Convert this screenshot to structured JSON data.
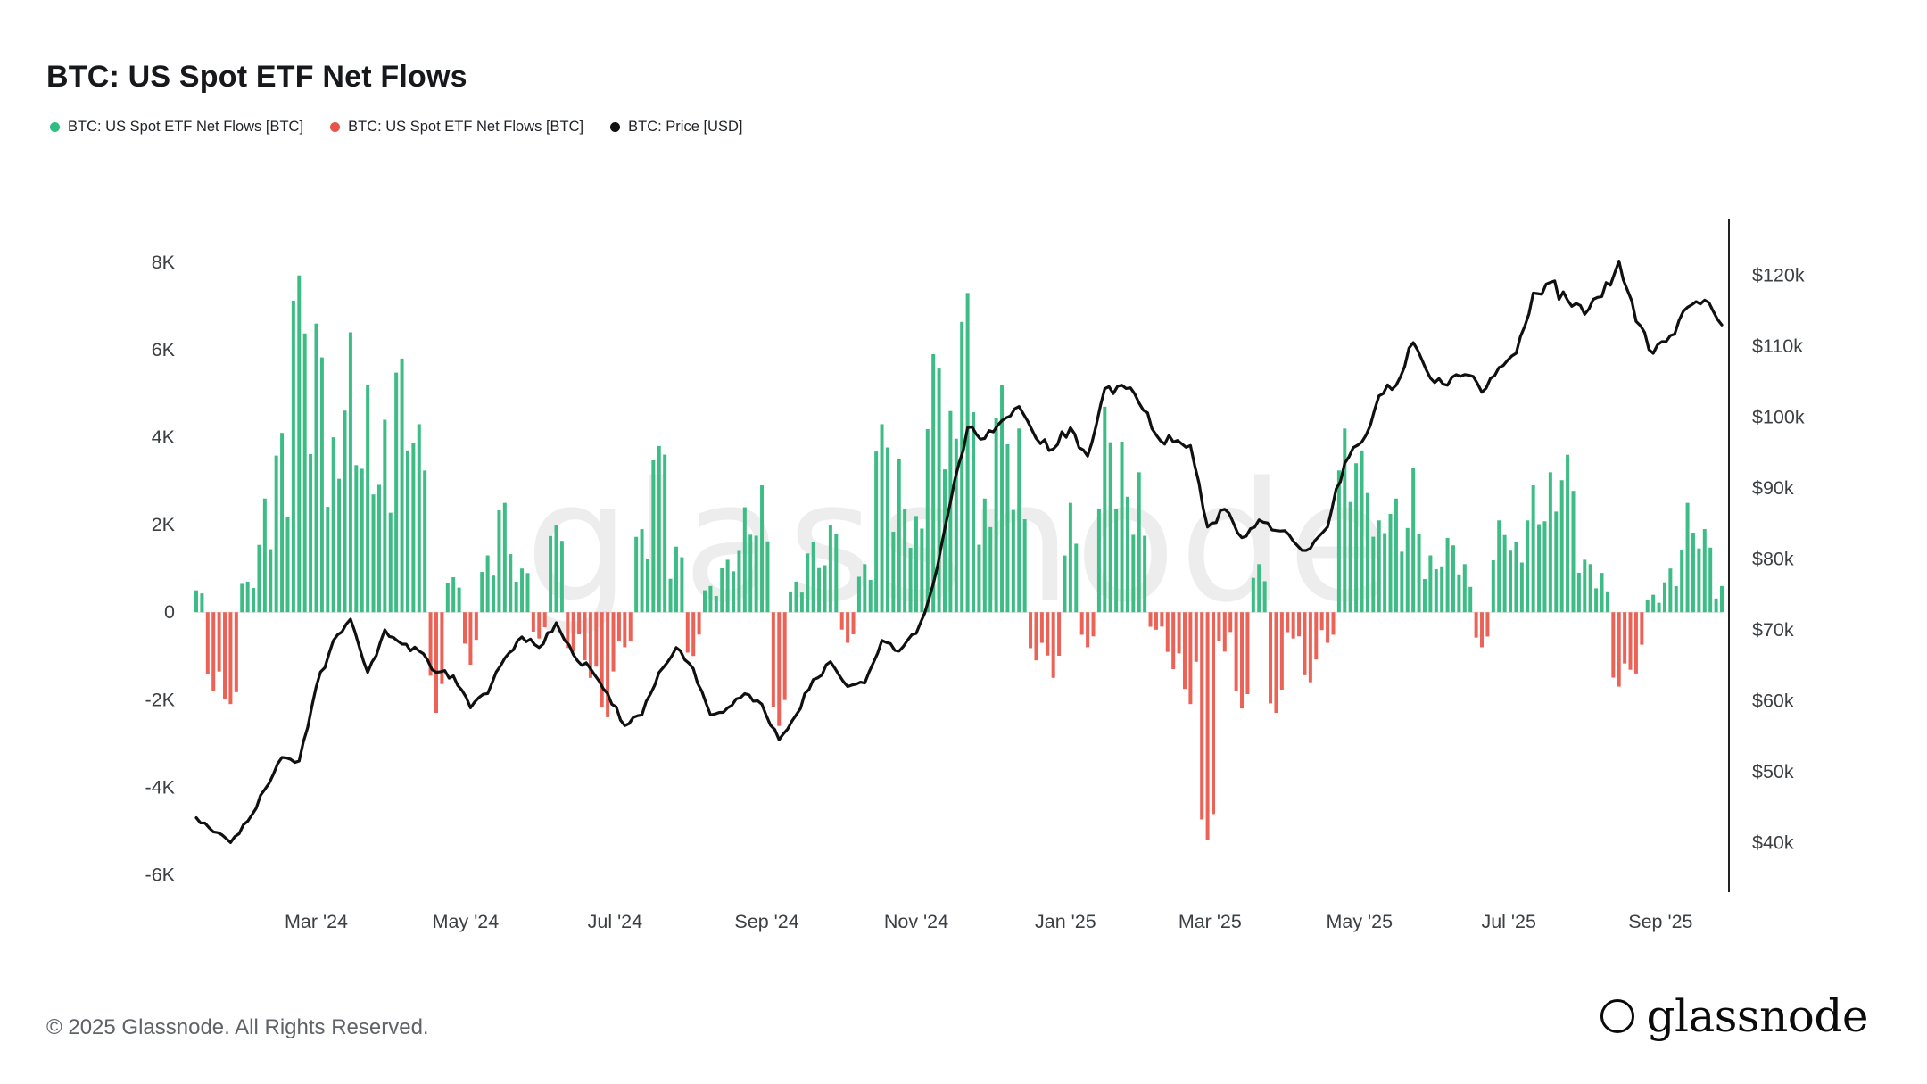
{
  "page": {
    "title": "BTC: US Spot ETF Net Flows",
    "footer_copyright": "© 2025 Glassnode. All Rights Reserved.",
    "brand": "glassnode",
    "watermark": "glassnode"
  },
  "legend": {
    "items": [
      {
        "label": "BTC: US Spot ETF Net Flows [BTC]",
        "color": "#2fbd82"
      },
      {
        "label": "BTC: US Spot ETF Net Flows [BTC]",
        "color": "#e8544a"
      },
      {
        "label": "BTC: Price [USD]",
        "color": "#111111"
      }
    ]
  },
  "chart_data": {
    "type": "bar+line",
    "title": "BTC: US Spot ETF Net Flows",
    "granularity": "weekly (approximate values read from chart)",
    "legend_position": "top-left",
    "grid": false,
    "watermark": "glassnode",
    "series": [
      {
        "name": "BTC: US Spot ETF Net Flows [BTC]",
        "type": "bar",
        "role": "inflows",
        "color": "#3dbd85"
      },
      {
        "name": "BTC: US Spot ETF Net Flows [BTC]",
        "type": "bar",
        "role": "outflows",
        "color": "#ec6257"
      },
      {
        "name": "BTC: Price [USD]",
        "type": "line",
        "color": "#101010"
      }
    ],
    "x_start": "2024-01-12",
    "x_step_days": 7,
    "flows_btc": [
      500,
      -1800,
      -2100,
      700,
      2600,
      4100,
      7700,
      6600,
      4000,
      6400,
      5200,
      4400,
      5800,
      4300,
      -2300,
      800,
      -1200,
      1300,
      2500,
      1000,
      -600,
      2000,
      -900,
      -1500,
      -2400,
      -800,
      1900,
      3800,
      1500,
      -1000,
      600,
      1200,
      2400,
      2900,
      -2600,
      700,
      1600,
      2000,
      -700,
      1100,
      4300,
      3500,
      2200,
      5900,
      4600,
      7300,
      2600,
      5200,
      4200,
      -1100,
      -1500,
      2500,
      -800,
      4700,
      3900,
      3200,
      -400,
      -1300,
      -2100,
      -5200,
      -900,
      -2200,
      1100,
      -2300,
      -600,
      -1600,
      -700,
      4200,
      3700,
      2100,
      2600,
      3300,
      1300,
      1700,
      1100,
      -800,
      2100,
      1600,
      2900,
      3200,
      3600,
      1200,
      900,
      -1700,
      -1400,
      400,
      1000,
      2500,
      1900,
      600
    ],
    "price_usd": [
      43500,
      41500,
      40000,
      43000,
      47500,
      52000,
      51500,
      62000,
      68500,
      71500,
      64000,
      70000,
      68000,
      67000,
      64000,
      63500,
      59000,
      61000,
      66000,
      69000,
      67500,
      71000,
      66500,
      64500,
      61000,
      56500,
      58000,
      64000,
      67500,
      64500,
      58000,
      59000,
      61000,
      59500,
      54500,
      58000,
      63000,
      65500,
      62000,
      62500,
      68500,
      67000,
      69500,
      76500,
      88000,
      98500,
      97000,
      99500,
      101500,
      97000,
      95500,
      98500,
      94500,
      104000,
      104500,
      102000,
      97500,
      96500,
      96000,
      84500,
      87000,
      83000,
      85500,
      84000,
      82500,
      81500,
      84500,
      93500,
      96500,
      103000,
      104500,
      110500,
      105500,
      104500,
      106000,
      103500,
      107000,
      109000,
      117500,
      119000,
      116500,
      114500,
      117000,
      122000,
      113500,
      109000,
      111500,
      115500,
      116500,
      113000
    ],
    "left_axis": {
      "range": [
        -6400,
        9000
      ],
      "ticks": [
        {
          "value": 8000,
          "label": "8K"
        },
        {
          "value": 6000,
          "label": "6K"
        },
        {
          "value": 4000,
          "label": "4K"
        },
        {
          "value": 2000,
          "label": "2K"
        },
        {
          "value": 0,
          "label": "0"
        },
        {
          "value": -2000,
          "label": "-2K"
        },
        {
          "value": -4000,
          "label": "-4K"
        },
        {
          "value": -6000,
          "label": "-6K"
        }
      ]
    },
    "right_axis": {
      "range": [
        33000,
        128000
      ],
      "ticks": [
        {
          "value": 120000,
          "label": "$120k"
        },
        {
          "value": 110000,
          "label": "$110k"
        },
        {
          "value": 100000,
          "label": "$100k"
        },
        {
          "value": 90000,
          "label": "$90k"
        },
        {
          "value": 80000,
          "label": "$80k"
        },
        {
          "value": 70000,
          "label": "$70k"
        },
        {
          "value": 60000,
          "label": "$60k"
        },
        {
          "value": 50000,
          "label": "$50k"
        },
        {
          "value": 40000,
          "label": "$40k"
        }
      ]
    },
    "x_axis": {
      "ticks": [
        {
          "date": "2024-03-01",
          "label": "Mar '24"
        },
        {
          "date": "2024-05-01",
          "label": "May '24"
        },
        {
          "date": "2024-07-01",
          "label": "Jul '24"
        },
        {
          "date": "2024-09-01",
          "label": "Sep '24"
        },
        {
          "date": "2024-11-01",
          "label": "Nov '24"
        },
        {
          "date": "2025-01-01",
          "label": "Jan '25"
        },
        {
          "date": "2025-03-01",
          "label": "Mar '25"
        },
        {
          "date": "2025-05-01",
          "label": "May '25"
        },
        {
          "date": "2025-07-01",
          "label": "Jul '25"
        },
        {
          "date": "2025-09-01",
          "label": "Sep '25"
        }
      ]
    }
  }
}
